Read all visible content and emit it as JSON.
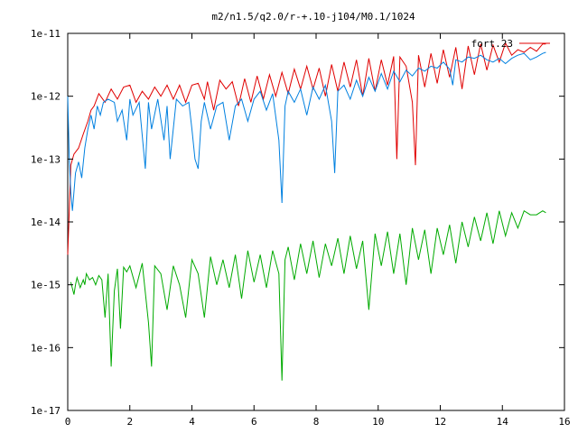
{
  "chart_data": {
    "type": "line",
    "title": "m2/n1.5/q2.0/r-+.10-j104/M0.1/1024",
    "xlabel": "",
    "ylabel": "",
    "xlim": [
      0,
      16
    ],
    "ylim": [
      1e-17,
      1e-11
    ],
    "yscale": "log",
    "x_ticks": [
      0,
      2,
      4,
      6,
      8,
      10,
      12,
      14,
      16
    ],
    "x_tick_labels": [
      "0",
      "2",
      "4",
      "6",
      "8",
      "10",
      "12",
      "14",
      "16"
    ],
    "y_ticks": [
      1e-17,
      1e-16,
      1e-15,
      1e-14,
      1e-13,
      1e-12,
      1e-11
    ],
    "y_tick_labels": [
      "1e-17",
      "1e-16",
      "1e-15",
      "1e-14",
      "1e-13",
      "1e-12",
      "1e-11"
    ],
    "grid": false,
    "legend_position": "top-right",
    "series": [
      {
        "name": "fort.23",
        "color": "#e00000",
        "x": [
          0.0,
          0.1,
          0.2,
          0.35,
          0.5,
          0.65,
          0.75,
          0.85,
          1.0,
          1.2,
          1.4,
          1.6,
          1.8,
          2.0,
          2.1,
          2.2,
          2.4,
          2.6,
          2.8,
          3.0,
          3.2,
          3.4,
          3.6,
          3.8,
          4.0,
          4.2,
          4.4,
          4.5,
          4.7,
          4.9,
          5.1,
          5.3,
          5.5,
          5.7,
          5.9,
          6.1,
          6.3,
          6.5,
          6.7,
          6.9,
          7.1,
          7.3,
          7.5,
          7.7,
          7.9,
          8.1,
          8.3,
          8.5,
          8.7,
          8.9,
          9.1,
          9.3,
          9.5,
          9.7,
          9.9,
          10.1,
          10.3,
          10.5,
          10.6,
          10.7,
          10.9,
          11.1,
          11.2,
          11.3,
          11.5,
          11.7,
          11.9,
          12.1,
          12.3,
          12.5,
          12.7,
          12.9,
          13.1,
          13.3,
          13.5,
          13.7,
          13.9,
          14.1,
          14.3,
          14.5,
          14.7,
          14.9,
          15.1,
          15.3,
          15.4
        ],
        "y": [
          3e-15,
          8e-14,
          1.2e-13,
          1.5e-13,
          2.5e-13,
          4e-13,
          6e-13,
          7e-13,
          1.1e-12,
          8e-13,
          1.3e-12,
          9e-13,
          1.4e-12,
          1.5e-12,
          1.1e-12,
          8e-13,
          1.2e-12,
          9e-13,
          1.4e-12,
          1e-12,
          1.5e-12,
          9e-13,
          1.5e-12,
          8e-13,
          1.5e-12,
          1.6e-12,
          9e-13,
          1.7e-12,
          6e-13,
          1.8e-12,
          1.3e-12,
          1.7e-12,
          7e-13,
          1.9e-12,
          8e-13,
          2.1e-12,
          9e-13,
          2.2e-12,
          1e-12,
          2.4e-12,
          1.1e-12,
          2.7e-12,
          1.3e-12,
          3e-12,
          1.3e-12,
          2.8e-12,
          1e-12,
          3.2e-12,
          1.2e-12,
          3.5e-12,
          1.4e-12,
          3.8e-12,
          1e-12,
          4e-12,
          1.2e-12,
          3.8e-12,
          1.5e-12,
          4.3e-12,
          1e-13,
          4.2e-12,
          3e-12,
          8e-13,
          8e-14,
          4.5e-12,
          1.4e-12,
          4.8e-12,
          1.6e-12,
          5.5e-12,
          2e-12,
          6e-12,
          1.3e-12,
          6.3e-12,
          2.2e-12,
          6.8e-12,
          2.6e-12,
          6.5e-12,
          3.5e-12,
          7e-12,
          4.5e-12,
          5.5e-12,
          5e-12,
          6e-12,
          5.2e-12,
          6.8e-12,
          6.8e-12
        ]
      },
      {
        "name": "",
        "color": "#0080e0",
        "x": [
          0.0,
          0.05,
          0.1,
          0.15,
          0.25,
          0.35,
          0.45,
          0.55,
          0.65,
          0.75,
          0.85,
          0.95,
          1.05,
          1.15,
          1.3,
          1.5,
          1.6,
          1.75,
          1.9,
          2.0,
          2.1,
          2.3,
          2.5,
          2.6,
          2.7,
          2.9,
          3.1,
          3.2,
          3.3,
          3.5,
          3.7,
          3.9,
          4.0,
          4.1,
          4.2,
          4.3,
          4.4,
          4.6,
          4.8,
          5.0,
          5.2,
          5.4,
          5.6,
          5.8,
          6.0,
          6.2,
          6.4,
          6.6,
          6.8,
          6.9,
          7.0,
          7.1,
          7.3,
          7.5,
          7.7,
          7.9,
          8.1,
          8.3,
          8.5,
          8.6,
          8.7,
          8.9,
          9.1,
          9.3,
          9.5,
          9.7,
          9.9,
          10.1,
          10.3,
          10.5,
          10.7,
          10.9,
          11.1,
          11.3,
          11.5,
          11.7,
          11.9,
          12.1,
          12.3,
          12.4,
          12.5,
          12.7,
          12.9,
          13.1,
          13.3,
          13.5,
          13.7,
          13.9,
          14.1,
          14.3,
          14.5,
          14.7,
          14.9,
          15.1,
          15.3,
          15.4
        ],
        "y": [
          1e-12,
          1e-13,
          3e-14,
          1.5e-14,
          6e-14,
          9e-14,
          5e-14,
          1.5e-13,
          3e-13,
          5e-13,
          3e-13,
          7e-13,
          5e-13,
          8e-13,
          9e-13,
          8e-13,
          4e-13,
          6e-13,
          2e-13,
          9e-13,
          5e-13,
          8e-13,
          7e-14,
          8e-13,
          3e-13,
          9e-13,
          2e-13,
          7e-13,
          1e-13,
          9e-13,
          7e-13,
          8e-13,
          3e-13,
          1e-13,
          7e-14,
          4e-13,
          8e-13,
          3e-13,
          7e-13,
          8e-13,
          2e-13,
          7e-13,
          9e-13,
          4e-13,
          9e-13,
          1.2e-12,
          6e-13,
          1.1e-12,
          2e-13,
          2e-14,
          7e-13,
          1.2e-12,
          8e-13,
          1.3e-12,
          5e-13,
          1.4e-12,
          9e-13,
          1.5e-12,
          4e-13,
          6e-14,
          1.2e-12,
          1.5e-12,
          9e-13,
          1.8e-12,
          1e-12,
          2e-12,
          1.2e-12,
          2.3e-12,
          1.3e-12,
          2.5e-12,
          1.7e-12,
          2.6e-12,
          2.1e-12,
          2.8e-12,
          2.5e-12,
          3e-12,
          2.8e-12,
          3.5e-12,
          2.7e-12,
          1.5e-12,
          3.8e-12,
          3.5e-12,
          4.2e-12,
          4e-12,
          4.5e-12,
          3.8e-12,
          3.5e-12,
          4e-12,
          3.3e-12,
          4e-12,
          4.5e-12,
          4.8e-12,
          3.8e-12,
          4.2e-12,
          4.8e-12,
          5e-12
        ]
      },
      {
        "name": "",
        "color": "#00aa00",
        "x": [
          0.1,
          0.2,
          0.25,
          0.3,
          0.4,
          0.5,
          0.55,
          0.6,
          0.7,
          0.8,
          0.9,
          1.0,
          1.1,
          1.2,
          1.3,
          1.4,
          1.5,
          1.6,
          1.7,
          1.8,
          1.9,
          2.0,
          2.2,
          2.4,
          2.6,
          2.7,
          2.8,
          3.0,
          3.2,
          3.4,
          3.6,
          3.8,
          4.0,
          4.2,
          4.4,
          4.6,
          4.8,
          5.0,
          5.2,
          5.4,
          5.6,
          5.8,
          6.0,
          6.2,
          6.4,
          6.6,
          6.8,
          6.9,
          7.0,
          7.1,
          7.3,
          7.5,
          7.7,
          7.9,
          8.1,
          8.3,
          8.5,
          8.7,
          8.9,
          9.1,
          9.3,
          9.5,
          9.7,
          9.9,
          10.1,
          10.3,
          10.5,
          10.7,
          10.9,
          11.1,
          11.3,
          11.5,
          11.7,
          11.9,
          12.1,
          12.3,
          12.5,
          12.7,
          12.9,
          13.1,
          13.3,
          13.5,
          13.7,
          13.9,
          14.1,
          14.3,
          14.5,
          14.7,
          14.9,
          15.1,
          15.3,
          15.4
        ],
        "y": [
          1.1e-15,
          7e-16,
          1e-15,
          1.3e-15,
          9e-16,
          1.2e-15,
          1e-15,
          1.5e-15,
          1.2e-15,
          1.3e-15,
          1e-15,
          1.4e-15,
          1.2e-15,
          3e-16,
          1.5e-15,
          5e-17,
          8e-16,
          1.8e-15,
          2e-16,
          1.9e-15,
          1.6e-15,
          2e-15,
          9e-16,
          2.2e-15,
          2.5e-16,
          5e-17,
          2e-15,
          1.5e-15,
          4e-16,
          2e-15,
          1e-15,
          3e-16,
          2.5e-15,
          1.5e-15,
          3e-16,
          2.8e-15,
          1e-15,
          2.5e-15,
          9e-16,
          3e-15,
          6e-16,
          3.5e-15,
          1.1e-15,
          3e-15,
          9e-16,
          3.5e-15,
          1.5e-15,
          3e-17,
          2.5e-15,
          4e-15,
          1.2e-15,
          4.5e-15,
          1.5e-15,
          5e-15,
          1.3e-15,
          4.5e-15,
          2e-15,
          5.5e-15,
          1.5e-15,
          6e-15,
          1.8e-15,
          5e-15,
          4e-16,
          6.5e-15,
          2e-15,
          7e-15,
          1.5e-15,
          6.5e-15,
          1e-15,
          8e-15,
          2.5e-15,
          7.5e-15,
          1.5e-15,
          8e-15,
          3e-15,
          9e-15,
          2.2e-15,
          1e-14,
          4e-15,
          1.2e-14,
          5e-15,
          1.4e-14,
          4.5e-15,
          1.5e-14,
          6e-15,
          1.4e-14,
          8e-15,
          1.5e-14,
          1.3e-14,
          1.3e-14,
          1.5e-14,
          1.4e-14
        ]
      }
    ]
  }
}
